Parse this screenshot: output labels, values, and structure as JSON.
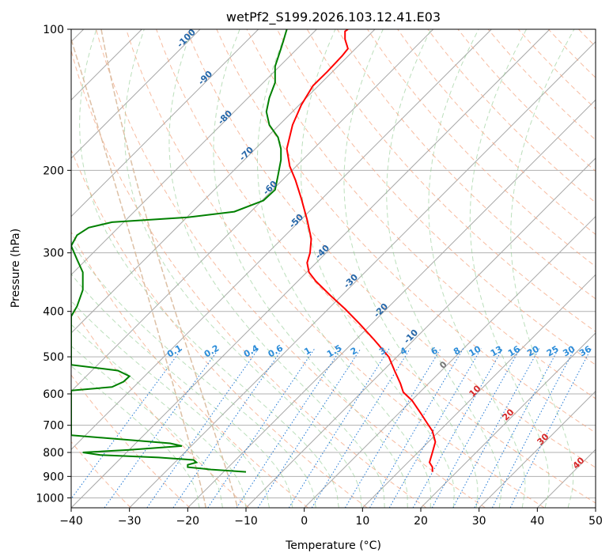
{
  "chart_data": {
    "type": "line",
    "subtype": "skew-t log-p",
    "title": "wetPf2_S199.2026.103.12.41.E03",
    "xlabel": "Temperature (°C)",
    "ylabel": "Pressure (hPa)",
    "xlim": [
      -40,
      50
    ],
    "ylim": [
      1050,
      100
    ],
    "y_scale": "log",
    "grid": true,
    "x_ticks": [
      "−40",
      "−30",
      "−20",
      "−10",
      "0",
      "10",
      "20",
      "30",
      "40",
      "50"
    ],
    "y_ticks": [
      "100",
      "200",
      "300",
      "400",
      "500",
      "600",
      "700",
      "800",
      "900",
      "1000"
    ],
    "series": [
      {
        "color": "#ff0000",
        "points": [
          [
            22,
            880
          ],
          [
            22,
            860
          ],
          [
            21.5,
            840
          ],
          [
            22,
            800
          ],
          [
            22.5,
            760
          ],
          [
            22,
            720
          ],
          [
            21,
            690
          ],
          [
            20,
            660
          ],
          [
            18.5,
            620
          ],
          [
            17,
            595
          ],
          [
            16.5,
            570
          ],
          [
            15.5,
            535
          ],
          [
            14.5,
            500
          ],
          [
            12,
            460
          ],
          [
            9.5,
            425
          ],
          [
            7,
            395
          ],
          [
            4.5,
            370
          ],
          [
            2,
            345
          ],
          [
            0.8,
            330
          ],
          [
            0.5,
            315
          ],
          [
            1,
            300
          ],
          [
            1.2,
            280
          ],
          [
            0.5,
            255
          ],
          [
            -0.5,
            230
          ],
          [
            -1.5,
            210
          ],
          [
            -2.5,
            196
          ],
          [
            -3,
            180
          ],
          [
            -2,
            160
          ],
          [
            -0.5,
            145
          ],
          [
            1.5,
            132
          ],
          [
            4,
            123
          ],
          [
            6.5,
            114
          ],
          [
            7.5,
            110
          ],
          [
            7,
            105
          ],
          [
            7,
            101
          ],
          [
            7.5,
            100
          ]
        ]
      },
      {
        "color": "#008000",
        "points": [
          [
            -10,
            880
          ],
          [
            -16,
            870
          ],
          [
            -20,
            860
          ],
          [
            -20,
            850
          ],
          [
            -18.5,
            840
          ],
          [
            -19,
            830
          ],
          [
            -25,
            820
          ],
          [
            -35,
            810
          ],
          [
            -38,
            800
          ],
          [
            -30,
            790
          ],
          [
            -21,
            775
          ],
          [
            -23,
            765
          ],
          [
            -40,
            735
          ],
          [
            -40,
            590
          ],
          [
            -33,
            580
          ],
          [
            -31,
            565
          ],
          [
            -30,
            550
          ],
          [
            -32,
            535
          ],
          [
            -40,
            520
          ],
          [
            -40,
            410
          ],
          [
            -39,
            390
          ],
          [
            -38,
            360
          ],
          [
            -38,
            330
          ],
          [
            -39,
            310
          ],
          [
            -40,
            290
          ],
          [
            -39,
            275
          ],
          [
            -37,
            265
          ],
          [
            -33,
            258
          ],
          [
            -20,
            252
          ],
          [
            -12,
            245
          ],
          [
            -7,
            232
          ],
          [
            -5,
            220
          ],
          [
            -4.5,
            205
          ],
          [
            -4,
            190
          ],
          [
            -4,
            180
          ],
          [
            -4.5,
            170
          ],
          [
            -6,
            160
          ],
          [
            -6.5,
            150
          ],
          [
            -6,
            140
          ],
          [
            -5,
            130
          ],
          [
            -5,
            120
          ],
          [
            -4,
            110
          ],
          [
            -3.5,
            105
          ],
          [
            -3,
            100
          ]
        ]
      }
    ],
    "annotations": {
      "dry_adiabats": [
        "-100",
        "-90",
        "-80",
        "-70",
        "-60",
        "-50",
        "-40",
        "-30",
        "-20",
        "-10"
      ],
      "moist_adiabats": [
        "0",
        "10",
        "20",
        "30",
        "40"
      ],
      "mixing_ratios": [
        "0.1",
        "0.2",
        "0.4",
        "0.6",
        "1",
        "1.5",
        "2",
        "3",
        "4",
        "6",
        "8",
        "10",
        "13",
        "16",
        "20",
        "25",
        "30",
        "36"
      ]
    }
  }
}
